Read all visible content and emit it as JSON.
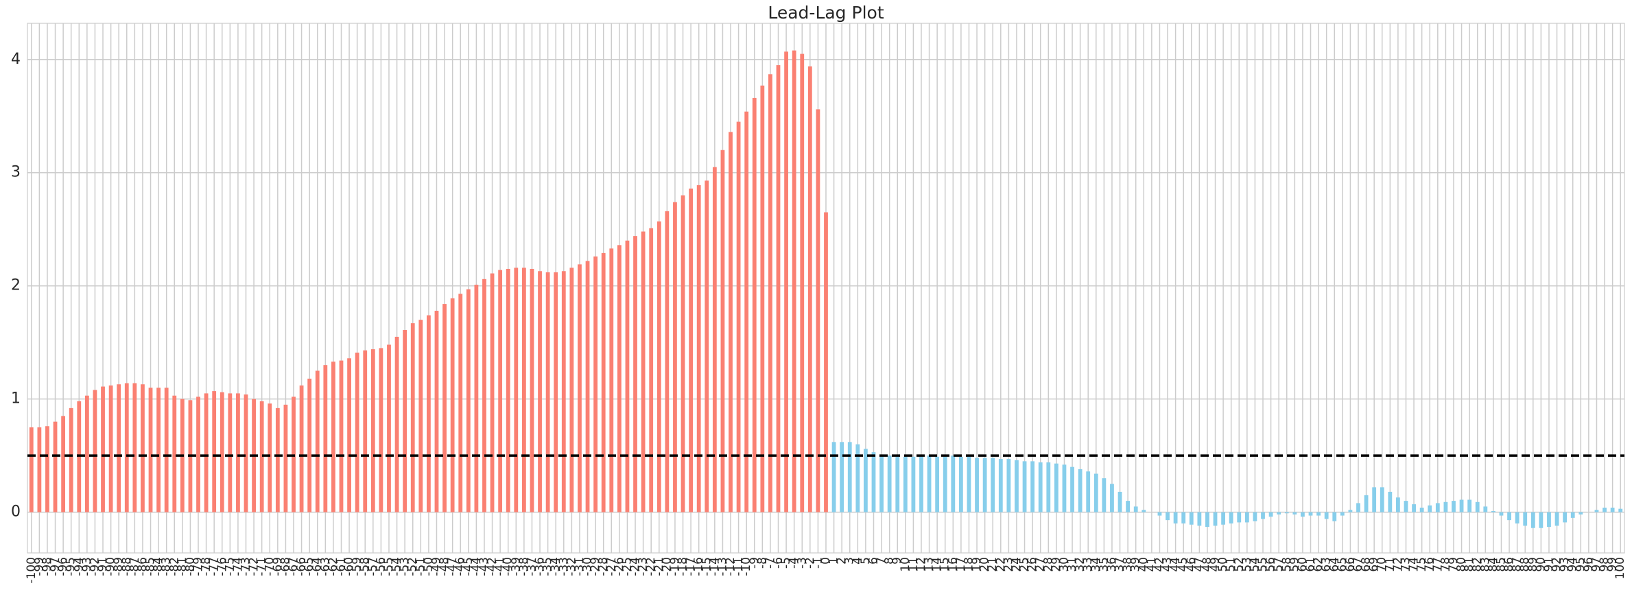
{
  "chart_data": {
    "type": "bar",
    "title": "Lead-Lag Plot",
    "categories": [
      -100,
      -99,
      -98,
      -97,
      -96,
      -95,
      -94,
      -93,
      -92,
      -91,
      -90,
      -89,
      -88,
      -87,
      -86,
      -85,
      -84,
      -83,
      -82,
      -81,
      -80,
      -79,
      -78,
      -77,
      -76,
      -75,
      -74,
      -73,
      -72,
      -71,
      -70,
      -69,
      -68,
      -67,
      -66,
      -65,
      -64,
      -63,
      -62,
      -61,
      -60,
      -59,
      -58,
      -57,
      -56,
      -55,
      -54,
      -53,
      -52,
      -51,
      -50,
      -49,
      -48,
      -47,
      -46,
      -45,
      -44,
      -43,
      -42,
      -41,
      -40,
      -39,
      -38,
      -37,
      -36,
      -35,
      -34,
      -33,
      -32,
      -31,
      -30,
      -29,
      -28,
      -27,
      -26,
      -25,
      -24,
      -23,
      -22,
      -21,
      -20,
      -19,
      -18,
      -17,
      -16,
      -15,
      -14,
      -13,
      -12,
      -11,
      -10,
      -9,
      -8,
      -7,
      -6,
      -5,
      -4,
      -3,
      -2,
      -1,
      0,
      1,
      2,
      3,
      4,
      5,
      6,
      7,
      8,
      9,
      10,
      11,
      12,
      13,
      14,
      15,
      16,
      17,
      18,
      19,
      20,
      21,
      22,
      23,
      24,
      25,
      26,
      27,
      28,
      29,
      30,
      31,
      32,
      33,
      34,
      35,
      36,
      37,
      38,
      39,
      40,
      41,
      42,
      43,
      44,
      45,
      46,
      47,
      48,
      49,
      50,
      51,
      52,
      53,
      54,
      55,
      56,
      57,
      58,
      59,
      60,
      61,
      62,
      63,
      64,
      65,
      66,
      67,
      68,
      69,
      70,
      71,
      72,
      73,
      74,
      75,
      76,
      77,
      78,
      79,
      80,
      81,
      82,
      83,
      84,
      85,
      86,
      87,
      88,
      89,
      90,
      91,
      92,
      93,
      94,
      95,
      96,
      97,
      98,
      99,
      100
    ],
    "values": [
      0.75,
      0.75,
      0.76,
      0.8,
      0.85,
      0.92,
      0.98,
      1.03,
      1.08,
      1.11,
      1.12,
      1.13,
      1.14,
      1.14,
      1.13,
      1.1,
      1.1,
      1.1,
      1.03,
      1.0,
      0.99,
      1.02,
      1.05,
      1.07,
      1.06,
      1.05,
      1.05,
      1.04,
      1.0,
      0.98,
      0.96,
      0.92,
      0.95,
      1.02,
      1.12,
      1.18,
      1.25,
      1.3,
      1.33,
      1.34,
      1.36,
      1.41,
      1.43,
      1.44,
      1.45,
      1.48,
      1.55,
      1.61,
      1.67,
      1.7,
      1.74,
      1.78,
      1.84,
      1.89,
      1.93,
      1.97,
      2.01,
      2.06,
      2.11,
      2.14,
      2.15,
      2.16,
      2.16,
      2.15,
      2.13,
      2.12,
      2.12,
      2.13,
      2.16,
      2.19,
      2.22,
      2.26,
      2.29,
      2.33,
      2.36,
      2.4,
      2.44,
      2.48,
      2.51,
      2.57,
      2.66,
      2.74,
      2.8,
      2.86,
      2.89,
      2.93,
      3.05,
      3.2,
      3.36,
      3.45,
      3.54,
      3.66,
      3.77,
      3.87,
      3.95,
      4.07,
      4.08,
      4.05,
      3.94,
      3.56,
      2.65,
      0.62,
      0.62,
      0.62,
      0.6,
      0.56,
      0.53,
      0.51,
      0.5,
      0.49,
      0.49,
      0.49,
      0.5,
      0.5,
      0.49,
      0.49,
      0.5,
      0.49,
      0.49,
      0.48,
      0.48,
      0.48,
      0.47,
      0.47,
      0.46,
      0.45,
      0.45,
      0.44,
      0.44,
      0.43,
      0.42,
      0.4,
      0.38,
      0.36,
      0.34,
      0.3,
      0.25,
      0.18,
      0.1,
      0.05,
      0.02,
      0.0,
      -0.03,
      -0.07,
      -0.1,
      -0.1,
      -0.11,
      -0.12,
      -0.13,
      -0.12,
      -0.11,
      -0.1,
      -0.09,
      -0.09,
      -0.08,
      -0.06,
      -0.04,
      -0.02,
      -0.01,
      -0.02,
      -0.04,
      -0.03,
      -0.03,
      -0.06,
      -0.08,
      -0.03,
      0.02,
      0.08,
      0.15,
      0.22,
      0.22,
      0.18,
      0.13,
      0.1,
      0.07,
      0.04,
      0.06,
      0.08,
      0.09,
      0.1,
      0.11,
      0.11,
      0.09,
      0.05,
      0.01,
      -0.03,
      -0.07,
      -0.1,
      -0.12,
      -0.14,
      -0.14,
      -0.13,
      -0.12,
      -0.09,
      -0.05,
      -0.02,
      0.0,
      0.02,
      0.04,
      0.04,
      0.03
    ],
    "bar_colors": [
      "#fa8072",
      "#fa8072",
      "#fa8072",
      "#fa8072",
      "#fa8072",
      "#fa8072",
      "#fa8072",
      "#fa8072",
      "#fa8072",
      "#fa8072",
      "#fa8072",
      "#fa8072",
      "#fa8072",
      "#fa8072",
      "#fa8072",
      "#fa8072",
      "#fa8072",
      "#fa8072",
      "#fa8072",
      "#fa8072",
      "#fa8072",
      "#fa8072",
      "#fa8072",
      "#fa8072",
      "#fa8072",
      "#fa8072",
      "#fa8072",
      "#fa8072",
      "#fa8072",
      "#fa8072",
      "#fa8072",
      "#fa8072",
      "#fa8072",
      "#fa8072",
      "#fa8072",
      "#fa8072",
      "#fa8072",
      "#fa8072",
      "#fa8072",
      "#fa8072",
      "#fa8072",
      "#fa8072",
      "#fa8072",
      "#fa8072",
      "#fa8072",
      "#fa8072",
      "#fa8072",
      "#fa8072",
      "#fa8072",
      "#fa8072",
      "#fa8072",
      "#fa8072",
      "#fa8072",
      "#fa8072",
      "#fa8072",
      "#fa8072",
      "#fa8072",
      "#fa8072",
      "#fa8072",
      "#fa8072",
      "#fa8072",
      "#fa8072",
      "#fa8072",
      "#fa8072",
      "#fa8072",
      "#fa8072",
      "#fa8072",
      "#fa8072",
      "#fa8072",
      "#fa8072",
      "#fa8072",
      "#fa8072",
      "#fa8072",
      "#fa8072",
      "#fa8072",
      "#fa8072",
      "#fa8072",
      "#fa8072",
      "#fa8072",
      "#fa8072",
      "#fa8072",
      "#fa8072",
      "#fa8072",
      "#fa8072",
      "#fa8072",
      "#fa8072",
      "#fa8072",
      "#fa8072",
      "#fa8072",
      "#fa8072",
      "#fa8072",
      "#fa8072",
      "#fa8072",
      "#fa8072",
      "#fa8072",
      "#fa8072",
      "#fa8072",
      "#fa8072",
      "#fa8072",
      "#fa8072",
      "#fa8072",
      "#87ceeb",
      "#87ceeb",
      "#87ceeb",
      "#87ceeb",
      "#87ceeb",
      "#87ceeb",
      "#87ceeb",
      "#87ceeb",
      "#87ceeb",
      "#87ceeb",
      "#87ceeb",
      "#87ceeb",
      "#87ceeb",
      "#87ceeb",
      "#87ceeb",
      "#87ceeb",
      "#87ceeb",
      "#87ceeb",
      "#87ceeb",
      "#87ceeb",
      "#87ceeb",
      "#87ceeb",
      "#87ceeb",
      "#87ceeb",
      "#87ceeb",
      "#87ceeb",
      "#87ceeb",
      "#87ceeb",
      "#87ceeb",
      "#87ceeb",
      "#87ceeb",
      "#87ceeb",
      "#87ceeb",
      "#87ceeb",
      "#87ceeb",
      "#87ceeb",
      "#87ceeb",
      "#87ceeb",
      "#87ceeb",
      "#87ceeb",
      "#87ceeb",
      "#87ceeb",
      "#87ceeb",
      "#87ceeb",
      "#87ceeb",
      "#87ceeb",
      "#87ceeb",
      "#87ceeb",
      "#87ceeb",
      "#87ceeb",
      "#87ceeb",
      "#87ceeb",
      "#87ceeb",
      "#87ceeb",
      "#87ceeb",
      "#87ceeb",
      "#87ceeb",
      "#87ceeb",
      "#87ceeb",
      "#87ceeb",
      "#87ceeb",
      "#87ceeb",
      "#87ceeb",
      "#87ceeb",
      "#87ceeb",
      "#87ceeb",
      "#87ceeb",
      "#87ceeb",
      "#87ceeb",
      "#87ceeb",
      "#87ceeb",
      "#87ceeb",
      "#87ceeb",
      "#87ceeb",
      "#87ceeb",
      "#87ceeb",
      "#87ceeb",
      "#87ceeb",
      "#87ceeb",
      "#87ceeb",
      "#87ceeb",
      "#87ceeb",
      "#87ceeb",
      "#87ceeb",
      "#87ceeb",
      "#87ceeb",
      "#87ceeb",
      "#87ceeb",
      "#87ceeb",
      "#87ceeb",
      "#87ceeb",
      "#87ceeb",
      "#87ceeb",
      "#87ceeb",
      "#87ceeb",
      "#87ceeb",
      "#87ceeb",
      "#87ceeb",
      "#87ceeb",
      "#87ceeb"
    ],
    "ylim": [
      -0.36,
      4.32
    ],
    "yticks": [
      0,
      1,
      2,
      3,
      4
    ],
    "grid": true,
    "hline": 0.5,
    "hline_color": "#000000"
  }
}
